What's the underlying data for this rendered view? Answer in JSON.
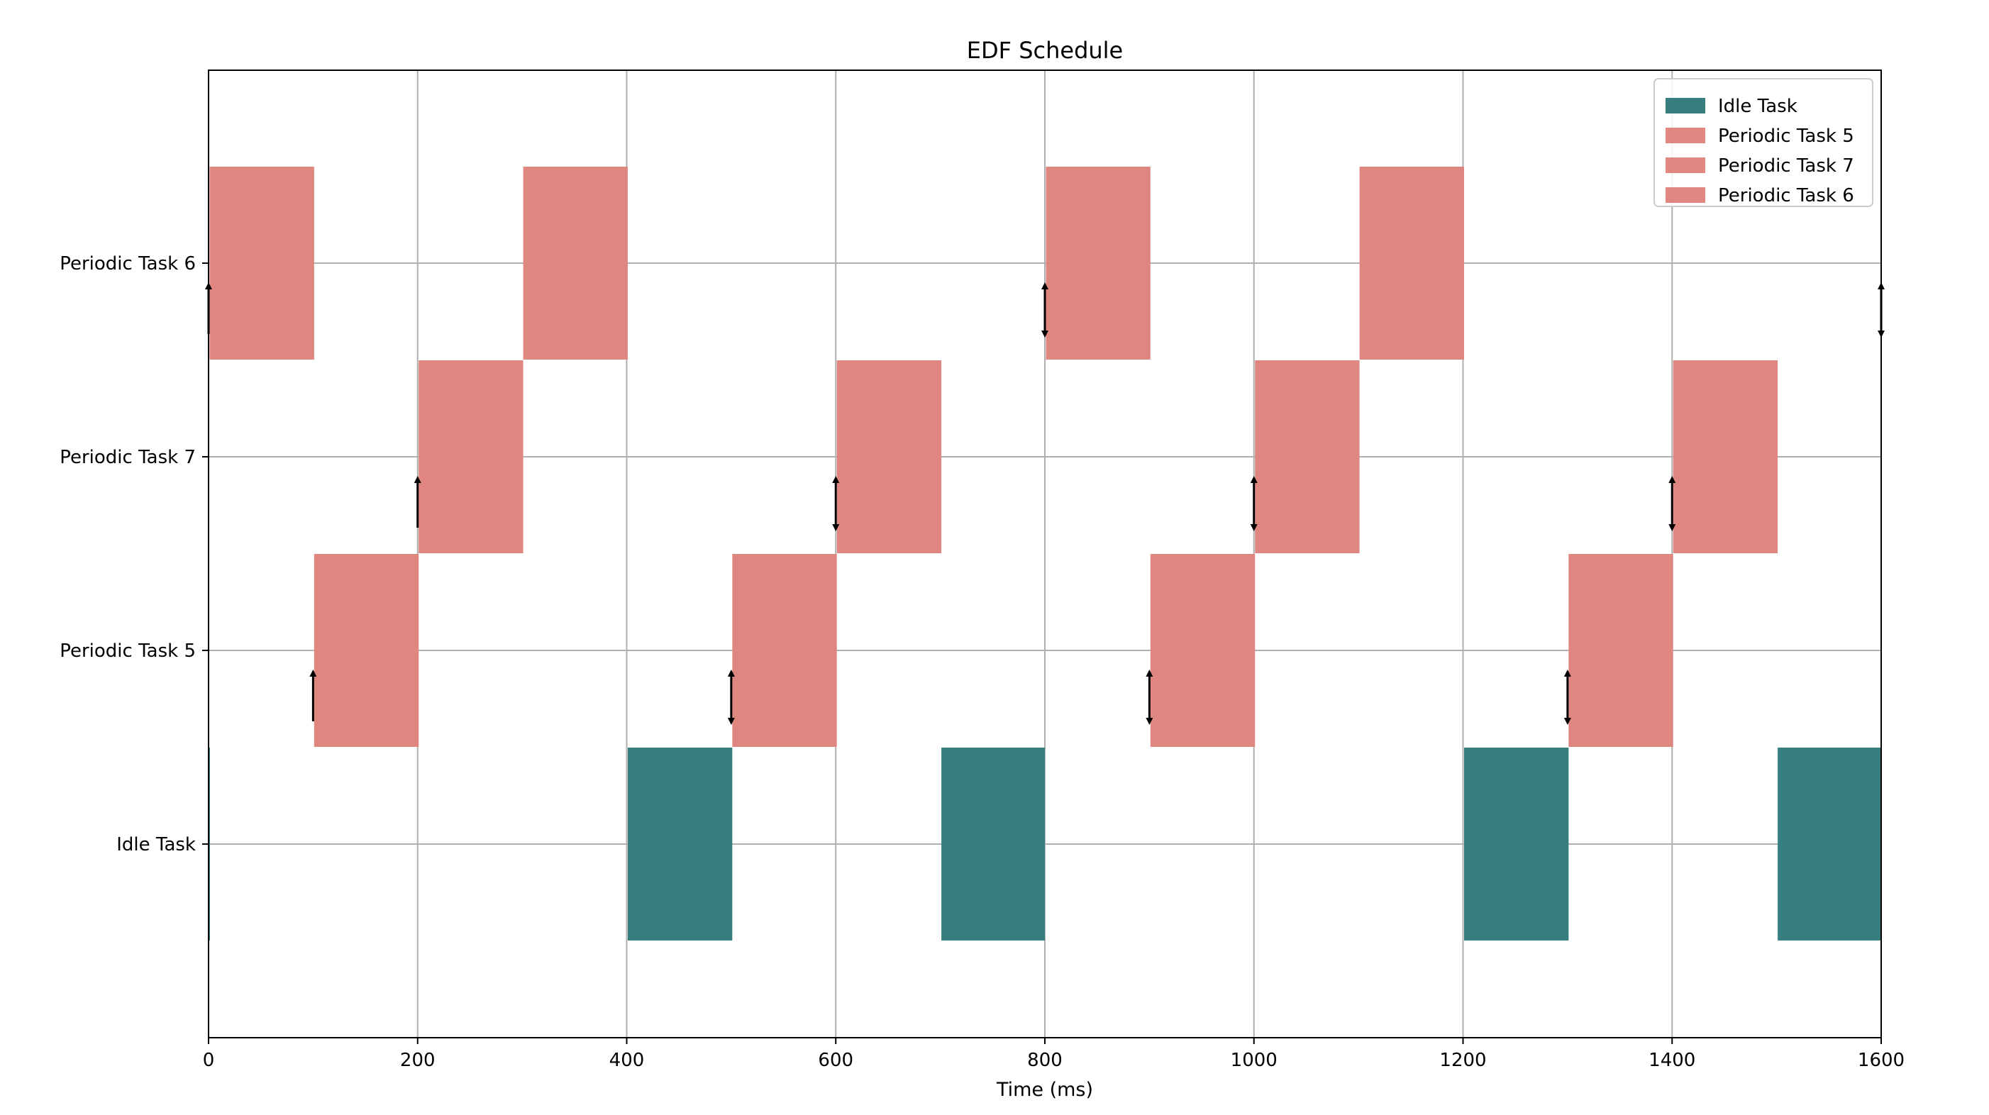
{
  "chart_data": {
    "type": "gantt",
    "title": "EDF Schedule",
    "xlabel": "Time (ms)",
    "ylabel": "",
    "xlim": [
      0,
      1600
    ],
    "x_ticks": [
      0,
      200,
      400,
      600,
      800,
      1000,
      1200,
      1400,
      1600
    ],
    "grid": true,
    "legend_position": "top-right",
    "tasks": [
      "Idle Task",
      "Periodic Task 5",
      "Periodic Task 7",
      "Periodic Task 6"
    ],
    "colors": {
      "Idle Task": "#367f7e",
      "Periodic Task 5": "#e08681",
      "Periodic Task 7": "#e08681",
      "Periodic Task 6": "#e08681"
    },
    "legend": [
      "Idle Task",
      "Periodic Task 5",
      "Periodic Task 7",
      "Periodic Task 6"
    ],
    "segments": [
      {
        "task": "Idle Task",
        "start": 0,
        "end": 1
      },
      {
        "task": "Periodic Task 6",
        "start": 1,
        "end": 101
      },
      {
        "task": "Periodic Task 5",
        "start": 101,
        "end": 201
      },
      {
        "task": "Periodic Task 7",
        "start": 201,
        "end": 301
      },
      {
        "task": "Periodic Task 6",
        "start": 301,
        "end": 401
      },
      {
        "task": "Idle Task",
        "start": 401,
        "end": 501
      },
      {
        "task": "Periodic Task 5",
        "start": 501,
        "end": 601
      },
      {
        "task": "Periodic Task 7",
        "start": 601,
        "end": 701
      },
      {
        "task": "Idle Task",
        "start": 701,
        "end": 800
      },
      {
        "task": "Periodic Task 6",
        "start": 801,
        "end": 901
      },
      {
        "task": "Periodic Task 5",
        "start": 901,
        "end": 1001
      },
      {
        "task": "Periodic Task 7",
        "start": 1001,
        "end": 1101
      },
      {
        "task": "Periodic Task 6",
        "start": 1101,
        "end": 1201
      },
      {
        "task": "Idle Task",
        "start": 1201,
        "end": 1301
      },
      {
        "task": "Periodic Task 5",
        "start": 1301,
        "end": 1401
      },
      {
        "task": "Periodic Task 7",
        "start": 1401,
        "end": 1501
      },
      {
        "task": "Idle Task",
        "start": 1501,
        "end": 1600
      }
    ],
    "events": [
      {
        "task": "Periodic Task 6",
        "time": 0,
        "type": "release"
      },
      {
        "task": "Periodic Task 5",
        "time": 100,
        "type": "release"
      },
      {
        "task": "Periodic Task 7",
        "time": 200,
        "type": "release"
      },
      {
        "task": "Periodic Task 5",
        "time": 500,
        "type": "release-deadline"
      },
      {
        "task": "Periodic Task 7",
        "time": 600,
        "type": "release-deadline"
      },
      {
        "task": "Periodic Task 6",
        "time": 800,
        "type": "release-deadline"
      },
      {
        "task": "Periodic Task 5",
        "time": 900,
        "type": "release-deadline"
      },
      {
        "task": "Periodic Task 7",
        "time": 1000,
        "type": "release-deadline"
      },
      {
        "task": "Periodic Task 5",
        "time": 1300,
        "type": "release-deadline"
      },
      {
        "task": "Periodic Task 7",
        "time": 1400,
        "type": "release-deadline"
      },
      {
        "task": "Periodic Task 6",
        "time": 1600,
        "type": "release-deadline"
      }
    ]
  }
}
